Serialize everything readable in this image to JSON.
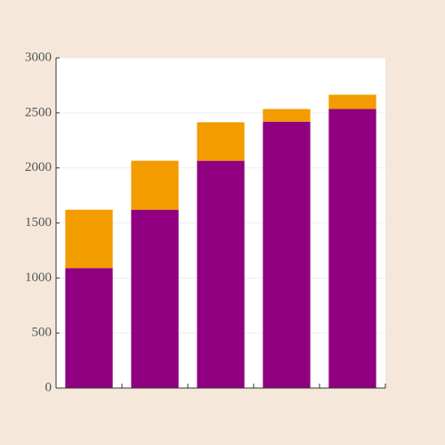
{
  "chart_data": {
    "type": "stacked_bar",
    "categories": [
      null,
      null,
      null,
      null,
      null
    ],
    "series": [
      {
        "color": "#900080",
        "values": [
          1090,
          1620,
          2065,
          2420,
          2535
        ]
      },
      {
        "color": "#f39c00",
        "values": [
          530,
          445,
          350,
          115,
          130
        ]
      }
    ],
    "ylim": [
      0,
      3000
    ],
    "yticks": [
      0,
      500,
      1000,
      1500,
      2000,
      2500,
      3000
    ],
    "grid": true
  }
}
